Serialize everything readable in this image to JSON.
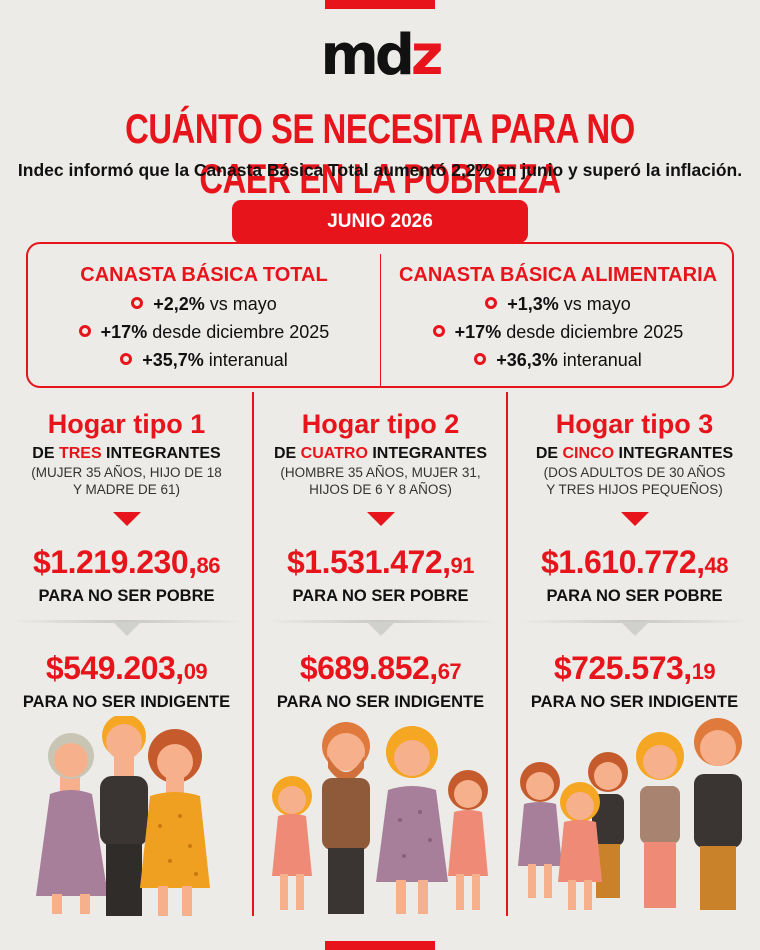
{
  "logo": {
    "part1": "md",
    "part2": "z"
  },
  "title": "CUÁNTO SE NECESITA PARA NO CAER EN LA POBREZA",
  "subtitle": "Indec informó que la Canasta Básica Total aumentó 2,2% en junio y superó la inflación.",
  "date_label": "JUNIO 2026",
  "canastas": [
    {
      "title": "CANASTA BÁSICA TOTAL",
      "rows": [
        {
          "value": "+2,2%",
          "text": " vs mayo"
        },
        {
          "value": "+17%",
          "text": " desde diciembre 2025"
        },
        {
          "value": "+35,7%",
          "text": " interanual"
        }
      ]
    },
    {
      "title": "CANASTA BÁSICA ALIMENTARIA",
      "rows": [
        {
          "value": "+1,3%",
          "text": " vs mayo"
        },
        {
          "value": "+17%",
          "text": " desde diciembre 2025"
        },
        {
          "value": "+36,3%",
          "text": " interanual"
        }
      ]
    }
  ],
  "hogares": [
    {
      "title": "Hogar tipo 1",
      "de": "DE ",
      "count": "TRES",
      "integrantes": " INTEGRANTES",
      "desc1": "(MUJER 35 AÑOS, HIJO DE 18",
      "desc2": "Y MADRE DE 61)",
      "pobre_int": "$1.219.230,",
      "pobre_cents": "86",
      "pobre_label": "PARA NO SER POBRE",
      "indig_int": "$549.203,",
      "indig_cents": "09",
      "indig_label": "PARA NO SER INDIGENTE"
    },
    {
      "title": "Hogar tipo 2",
      "de": "DE ",
      "count": "CUATRO",
      "integrantes": " INTEGRANTES",
      "desc1": "(HOMBRE 35 AÑOS, MUJER 31,",
      "desc2": "HIJOS DE 6 Y 8 AÑOS)",
      "pobre_int": "$1.531.472,",
      "pobre_cents": "91",
      "pobre_label": "PARA NO SER POBRE",
      "indig_int": "$689.852,",
      "indig_cents": "67",
      "indig_label": "PARA NO SER INDIGENTE"
    },
    {
      "title": "Hogar tipo 3",
      "de": "DE ",
      "count": "CINCO",
      "integrantes": " INTEGRANTES",
      "desc1": "(DOS ADULTOS DE 30 AÑOS",
      "desc2": "Y TRES HIJOS PEQUEÑOS)",
      "pobre_int": "$1.610.772,",
      "pobre_cents": "48",
      "pobre_label": "PARA NO SER POBRE",
      "indig_int": "$725.573,",
      "indig_cents": "19",
      "indig_label": "PARA NO SER INDIGENTE"
    }
  ],
  "colors": {
    "accent": "#e8141b",
    "background": "#ecebe7",
    "text": "#111111"
  }
}
